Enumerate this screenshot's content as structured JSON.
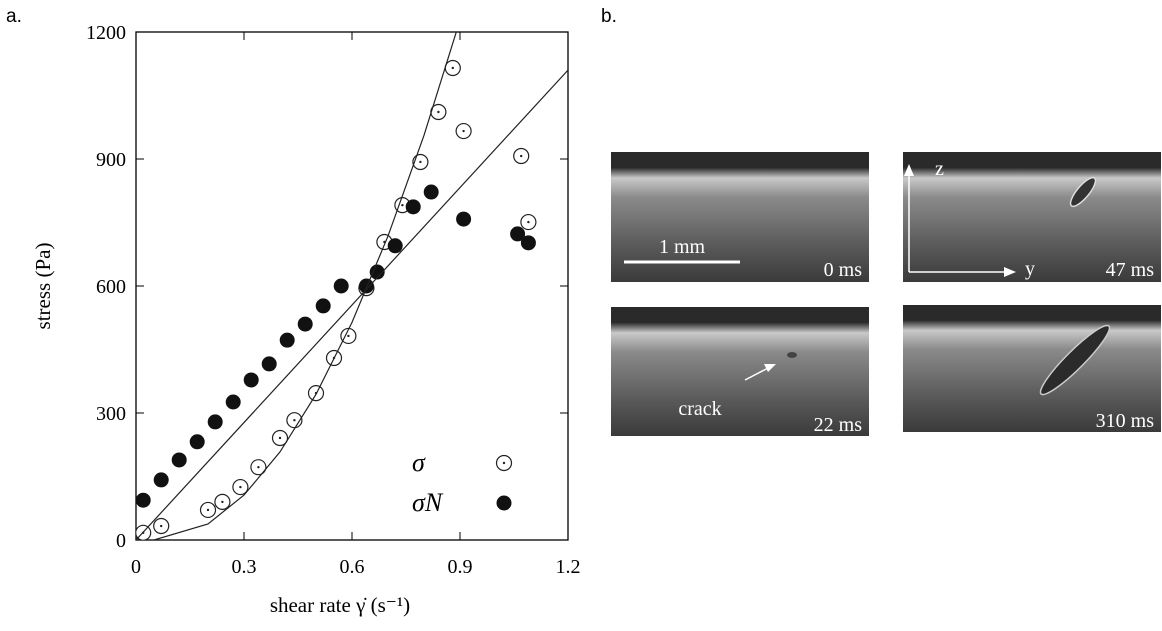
{
  "chart_data": {
    "type": "scatter",
    "panel_label": "a.",
    "x_label": "shear rate γ̇ (s⁻¹)",
    "y_label": "stress (Pa)",
    "xlim": [
      0,
      1.2
    ],
    "ylim": [
      0,
      1200
    ],
    "xticks": [
      0,
      0.3,
      0.6,
      0.9,
      1.2
    ],
    "yticks": [
      0,
      300,
      600,
      900,
      1200
    ],
    "legend": "lower right",
    "series": [
      {
        "name": "σ",
        "marker": "open-dot",
        "color": "#222222",
        "x": [
          0.02,
          0.07,
          0.2,
          0.24,
          0.29,
          0.34,
          0.4,
          0.44,
          0.5,
          0.55,
          0.59,
          0.64,
          0.69,
          0.74,
          0.79,
          0.84,
          0.88,
          0.91,
          1.07,
          1.09
        ],
        "values": [
          17,
          33,
          71,
          90,
          125,
          172,
          241,
          283,
          347,
          430,
          482,
          595,
          704,
          791,
          893,
          1011,
          1115,
          966,
          907,
          751
        ]
      },
      {
        "name": "σN",
        "marker": "filled",
        "color": "#111111",
        "x": [
          0.02,
          0.07,
          0.12,
          0.17,
          0.22,
          0.27,
          0.32,
          0.37,
          0.42,
          0.47,
          0.52,
          0.57,
          0.64,
          0.67,
          0.72,
          0.77,
          0.82,
          0.91,
          1.06,
          1.09
        ],
        "values": [
          94,
          142,
          189,
          232,
          279,
          326,
          378,
          416,
          472,
          510,
          553,
          600,
          600,
          633,
          695,
          787,
          822,
          758,
          723,
          702
        ]
      },
      {
        "marker": "line",
        "color": "#222222",
        "x": [
          0.05,
          0.2,
          0.3,
          0.4,
          0.5,
          0.6,
          0.7,
          0.8,
          0.9
        ],
        "values": [
          0,
          38,
          106,
          208,
          344,
          514,
          718,
          956,
          1228
        ]
      },
      {
        "marker": "line",
        "color": "#222222",
        "x": [
          0,
          1.2
        ],
        "values": [
          0,
          1110
        ]
      }
    ]
  },
  "photos": {
    "label": "b.",
    "panels": [
      {
        "time": "0 ms",
        "scale": "1 mm"
      },
      {
        "time": "47 ms",
        "axis_z": "z",
        "axis_y": "y"
      },
      {
        "time": "22 ms",
        "note": "crack"
      },
      {
        "time": "310 ms"
      }
    ]
  }
}
